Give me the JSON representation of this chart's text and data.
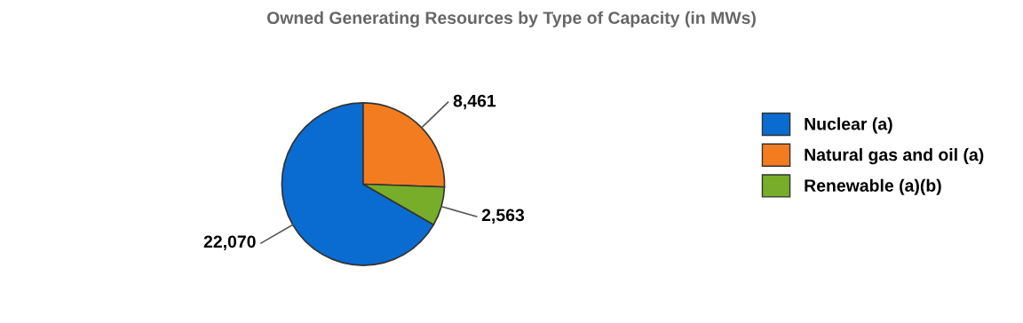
{
  "chart_data": {
    "type": "pie",
    "title": "Owned Generating Resources by Type of Capacity (in MWs)",
    "categories": [
      "Nuclear (a)",
      "Natural gas and oil (a)",
      "Renewable (a)(b)"
    ],
    "values": [
      22070,
      8461,
      2563
    ],
    "colors": [
      "#0a6bd1",
      "#f47c20",
      "#77ad28"
    ],
    "value_labels": [
      "22,070",
      "8,461",
      "2,563"
    ],
    "legend": "right"
  }
}
